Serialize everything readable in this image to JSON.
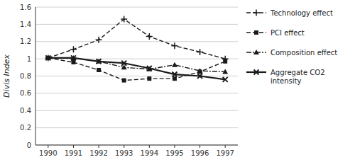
{
  "chart_data": {
    "type": "line",
    "x": [
      1990,
      1991,
      1992,
      1993,
      1994,
      1995,
      1996,
      1997
    ],
    "xlim": [
      1989.5,
      1997.5
    ],
    "xticks": [
      1990,
      1991,
      1992,
      1993,
      1994,
      1995,
      1996,
      1997
    ],
    "ylabel": "Divis Index",
    "ylim": [
      0,
      1.6
    ],
    "yticks": [
      0,
      0.2,
      0.4,
      0.6,
      0.8,
      1.0,
      1.2,
      1.4,
      1.6
    ],
    "grid": true,
    "legend": "right",
    "series": [
      {
        "name": "Technology effect",
        "color": "#1a1a1a",
        "marker": "plus",
        "line_style": "dashed",
        "values": [
          1.01,
          1.11,
          1.22,
          1.46,
          1.26,
          1.15,
          1.08,
          1.0
        ]
      },
      {
        "name": "PCI effect",
        "color": "#1a1a1a",
        "marker": "square",
        "line_style": "dashed",
        "values": [
          1.01,
          0.96,
          0.87,
          0.75,
          0.77,
          0.77,
          0.85,
          0.97
        ]
      },
      {
        "name": "Composition effect",
        "color": "#1a1a1a",
        "marker": "triangle",
        "line_style": "dashdot",
        "values": [
          1.01,
          1.01,
          0.97,
          0.9,
          0.88,
          0.93,
          0.86,
          0.85
        ]
      },
      {
        "name": "Aggregate CO2\nintensity",
        "color": "#1a1a1a",
        "marker": "x",
        "line_style": "solid",
        "values": [
          1.01,
          1.01,
          0.97,
          0.95,
          0.89,
          0.82,
          0.8,
          0.76
        ]
      }
    ]
  }
}
